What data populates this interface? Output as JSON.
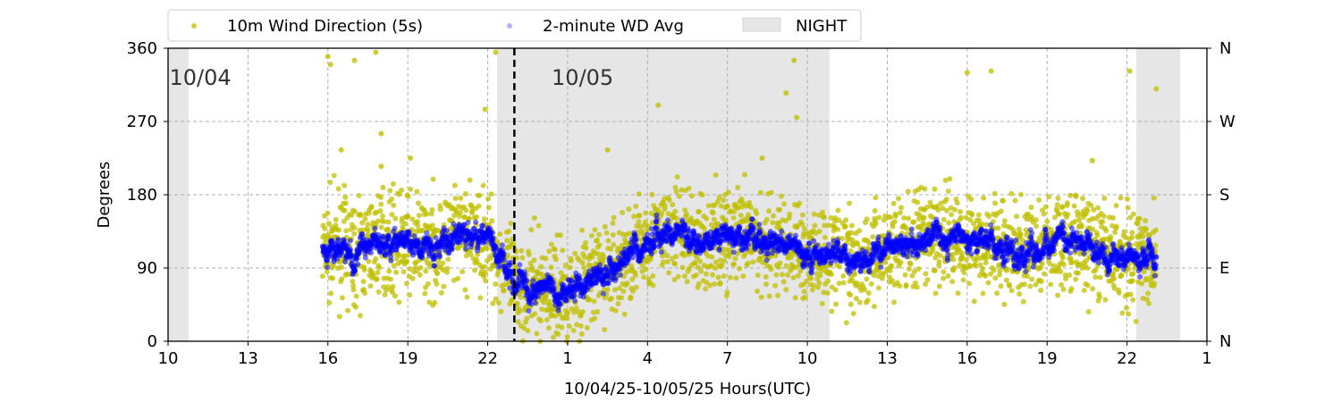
{
  "chart_data": {
    "type": "scatter",
    "xlabel": "10/04/25-10/05/25  Hours(UTC)",
    "ylabel": "Degrees",
    "xlim_hours": [
      10,
      49
    ],
    "ylim": [
      0,
      360
    ],
    "x_ticks": [
      {
        "h": 10,
        "label": "10"
      },
      {
        "h": 13,
        "label": "13"
      },
      {
        "h": 16,
        "label": "16"
      },
      {
        "h": 19,
        "label": "19"
      },
      {
        "h": 22,
        "label": "22"
      },
      {
        "h": 25,
        "label": "1"
      },
      {
        "h": 28,
        "label": "4"
      },
      {
        "h": 31,
        "label": "7"
      },
      {
        "h": 34,
        "label": "10"
      },
      {
        "h": 37,
        "label": "13"
      },
      {
        "h": 40,
        "label": "16"
      },
      {
        "h": 43,
        "label": "19"
      },
      {
        "h": 46,
        "label": "22"
      },
      {
        "h": 49,
        "label": "1"
      }
    ],
    "y_ticks": [
      {
        "v": 0,
        "label": "0"
      },
      {
        "v": 90,
        "label": "90"
      },
      {
        "v": 180,
        "label": "180"
      },
      {
        "v": 270,
        "label": "270"
      },
      {
        "v": 360,
        "label": "360"
      }
    ],
    "right_ticks": [
      {
        "v": 0,
        "label": "N"
      },
      {
        "v": 90,
        "label": "E"
      },
      {
        "v": 180,
        "label": "S"
      },
      {
        "v": 270,
        "label": "W"
      },
      {
        "v": 360,
        "label": "N"
      }
    ],
    "grid": true,
    "legend": {
      "placement": "top-left outside",
      "entries": [
        {
          "label": "10m Wind Direction (5s)",
          "color": "#bfbf00"
        },
        {
          "label": "2-minute WD Avg",
          "color": "#0000ff"
        },
        {
          "label": "NIGHT",
          "color": "#e6e6e6"
        }
      ]
    },
    "night_spans_hours": [
      [
        10,
        10.77
      ],
      [
        22.35,
        34.83
      ],
      [
        46.35,
        48
      ]
    ],
    "date_line_hour": 23,
    "date_labels": [
      {
        "h": 10.05,
        "label": "10/04"
      },
      {
        "h": 24.4,
        "label": "10/05"
      }
    ],
    "data_range_hours": [
      15.8,
      47.1
    ],
    "avg_series": {
      "name": "2-minute WD Avg",
      "hours": [
        15.8,
        16.5,
        17,
        18,
        19,
        20,
        21,
        22,
        22.5,
        23,
        24,
        25,
        26,
        27,
        28,
        29,
        30,
        31,
        32,
        33,
        34,
        35,
        36,
        37,
        38,
        39,
        40,
        41,
        42,
        43,
        44,
        45,
        46,
        47.1
      ],
      "degrees": [
        110,
        120,
        105,
        125,
        120,
        115,
        130,
        125,
        100,
        70,
        65,
        60,
        80,
        95,
        125,
        135,
        120,
        130,
        125,
        120,
        105,
        110,
        100,
        115,
        120,
        130,
        125,
        120,
        105,
        120,
        125,
        110,
        105,
        105
      ]
    },
    "scatter_spread_deg": 30,
    "outliers": [
      [
        16.0,
        350
      ],
      [
        16.1,
        340
      ],
      [
        16.5,
        235
      ],
      [
        17.0,
        345
      ],
      [
        17.8,
        355
      ],
      [
        18.0,
        255
      ],
      [
        18.0,
        215
      ],
      [
        19.1,
        225
      ],
      [
        21.9,
        285
      ],
      [
        22.3,
        355
      ],
      [
        26.5,
        235
      ],
      [
        28.4,
        290
      ],
      [
        32.3,
        225
      ],
      [
        33.2,
        305
      ],
      [
        33.5,
        345
      ],
      [
        33.6,
        275
      ],
      [
        40.0,
        330
      ],
      [
        40.9,
        332
      ],
      [
        44.7,
        222
      ],
      [
        46.1,
        332
      ],
      [
        47.1,
        310
      ]
    ],
    "colors": {
      "scatter": "#bfbf00",
      "avg": "#0000ff",
      "night": "#e6e6e6"
    }
  }
}
